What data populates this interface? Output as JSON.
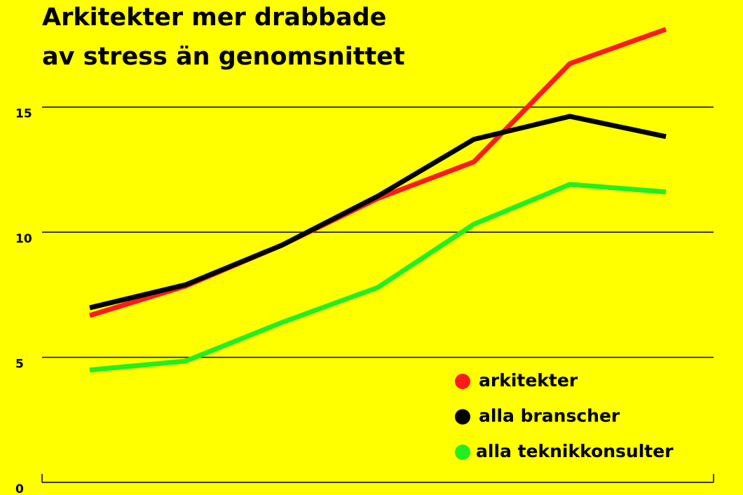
{
  "chart_data": {
    "type": "line",
    "title": [
      "Arkitekter mer drabbade",
      "av stress än genomsnittet"
    ],
    "categories": [
      null,
      null,
      null,
      null,
      null,
      null,
      null
    ],
    "series": [
      {
        "name": "arkitekter",
        "color": "#ff1a1a",
        "values": [
          6.67,
          7.85,
          9.48,
          11.35,
          12.81,
          16.74,
          18.11
        ]
      },
      {
        "name": "alla branscher",
        "color": "#000000",
        "values": [
          6.98,
          7.9,
          9.48,
          11.44,
          13.71,
          14.63,
          13.82
        ]
      },
      {
        "name": "alla teknikkonsulter",
        "color": "#22ee22",
        "values": [
          4.49,
          4.85,
          6.39,
          7.79,
          10.32,
          11.91,
          11.61
        ]
      }
    ],
    "ylim": [
      0,
      19
    ],
    "yticks": [
      0,
      5,
      10,
      15
    ],
    "grid": true,
    "legend": "lower right"
  }
}
